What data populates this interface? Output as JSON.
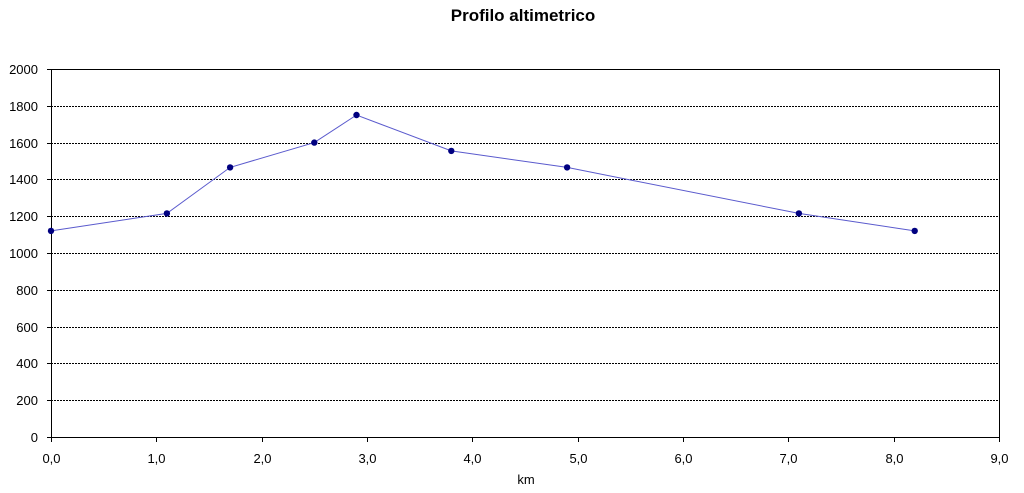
{
  "chart_data": {
    "type": "line",
    "title": "Profilo altimetrico",
    "xlabel": "km",
    "ylabel": "",
    "xlim": [
      0,
      9
    ],
    "ylim": [
      0,
      2000
    ],
    "x_ticks": [
      "0,0",
      "1,0",
      "2,0",
      "3,0",
      "4,0",
      "5,0",
      "6,0",
      "7,0",
      "8,0",
      "9,0"
    ],
    "y_ticks": [
      "0",
      "200",
      "400",
      "600",
      "800",
      "1000",
      "1200",
      "1400",
      "1600",
      "1800",
      "2000"
    ],
    "grid": true,
    "legend": "none",
    "colors": {
      "line": "#5a5acd",
      "marker": "#000080"
    },
    "series": [
      {
        "x": [
          0.0,
          1.1,
          1.7,
          2.5,
          2.9,
          3.8,
          4.9,
          7.1,
          8.2
        ],
        "y": [
          1120,
          1215,
          1465,
          1600,
          1750,
          1555,
          1465,
          1215,
          1120
        ]
      }
    ]
  }
}
